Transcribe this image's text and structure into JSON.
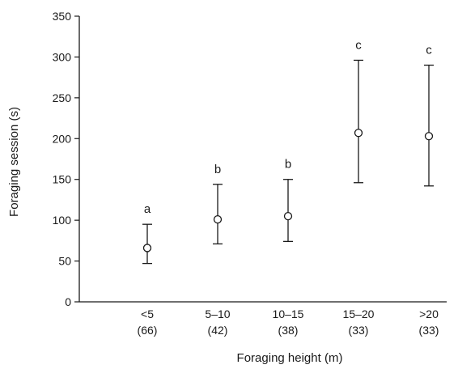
{
  "chart_data": {
    "type": "scatter",
    "subtype": "point-with-error-bars",
    "title": "",
    "xlabel": "Foraging height (m)",
    "ylabel": "Foraging session (s)",
    "ylim": [
      0,
      350
    ],
    "yticks": [
      0,
      50,
      100,
      150,
      200,
      250,
      300,
      350
    ],
    "grid": false,
    "categories": [
      "<5",
      "5–10",
      "10–15",
      "15–20",
      ">20"
    ],
    "sample_sizes": [
      "(66)",
      "(42)",
      "(38)",
      "(33)",
      "(33)"
    ],
    "series": [
      {
        "values": [
          66,
          101,
          105,
          207,
          203
        ],
        "error_low": [
          47,
          71,
          74,
          146,
          142
        ],
        "error_high": [
          95,
          144,
          150,
          296,
          290
        ],
        "significance_letters": [
          "a",
          "b",
          "b",
          "c",
          "c"
        ]
      }
    ]
  }
}
